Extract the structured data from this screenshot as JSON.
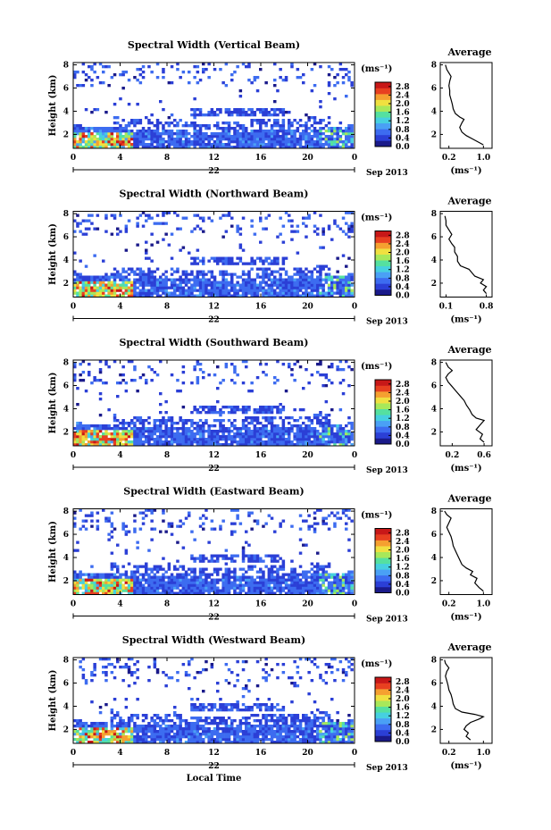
{
  "chart_data": {
    "type": "heatmap",
    "x_label": "Local Time",
    "y_label": "Height (km)",
    "x_ticks": [
      "0",
      "4",
      "8",
      "12",
      "16",
      "20",
      "0"
    ],
    "y_ticks": [
      "2",
      "4",
      "6",
      "8"
    ],
    "date_day": "22",
    "date_month_year": "Sep 2013",
    "colorbar_unit": "(ms⁻¹)",
    "colorbar_ticks": [
      "0.0",
      "0.4",
      "0.8",
      "1.2",
      "1.6",
      "2.0",
      "2.4",
      "2.8"
    ],
    "colorbar_range": [
      0.0,
      3.0
    ],
    "colors": [
      "#1a1a8a",
      "#2b3fd6",
      "#3d6cf0",
      "#4aa0f5",
      "#46d0e0",
      "#55e0a0",
      "#a8e85a",
      "#f0e040",
      "#f5a030",
      "#e84020",
      "#c81818"
    ],
    "panels": [
      {
        "title": "Spectral Width (Vertical Beam)",
        "avg_title": "Average",
        "avg_unit": "(ms⁻¹)",
        "avg_xticks": [
          "0.2",
          "1.0"
        ],
        "avg_xrange": [
          0.0,
          1.2
        ],
        "avg_profile": [
          [
            1.0,
            1.1
          ],
          [
            0.9,
            1.3
          ],
          [
            0.75,
            1.6
          ],
          [
            0.6,
            1.9
          ],
          [
            0.5,
            2.2
          ],
          [
            0.45,
            2.6
          ],
          [
            0.5,
            3.0
          ],
          [
            0.55,
            3.3
          ],
          [
            0.45,
            3.5
          ],
          [
            0.35,
            3.8
          ],
          [
            0.3,
            4.2
          ],
          [
            0.28,
            4.6
          ],
          [
            0.25,
            5.0
          ],
          [
            0.22,
            5.4
          ],
          [
            0.22,
            5.8
          ],
          [
            0.2,
            6.2
          ],
          [
            0.22,
            6.6
          ],
          [
            0.25,
            7.0
          ],
          [
            0.2,
            7.3
          ],
          [
            0.15,
            7.6
          ],
          [
            0.12,
            8.0
          ]
        ]
      },
      {
        "title": "Spectral Width (Northward Beam)",
        "avg_title": "Average",
        "avg_unit": "(ms⁻¹)",
        "avg_xticks": [
          "0.1",
          "0.8"
        ],
        "avg_xrange": [
          0.0,
          0.9
        ],
        "avg_profile": [
          [
            0.8,
            1.1
          ],
          [
            0.75,
            1.4
          ],
          [
            0.8,
            1.7
          ],
          [
            0.7,
            2.0
          ],
          [
            0.75,
            2.3
          ],
          [
            0.6,
            2.6
          ],
          [
            0.55,
            2.9
          ],
          [
            0.5,
            3.2
          ],
          [
            0.35,
            3.5
          ],
          [
            0.3,
            3.9
          ],
          [
            0.3,
            4.3
          ],
          [
            0.25,
            4.7
          ],
          [
            0.25,
            5.1
          ],
          [
            0.2,
            5.4
          ],
          [
            0.15,
            5.8
          ],
          [
            0.2,
            6.2
          ],
          [
            0.15,
            6.6
          ],
          [
            0.1,
            7.0
          ],
          [
            0.1,
            7.4
          ],
          [
            0.08,
            7.8
          ]
        ]
      },
      {
        "title": "Spectral Width (Southward Beam)",
        "avg_title": "Average",
        "avg_unit": "(ms⁻¹)",
        "avg_xticks": [
          "0.2",
          "0.6"
        ],
        "avg_xrange": [
          0.05,
          0.7
        ],
        "avg_profile": [
          [
            0.6,
            1.1
          ],
          [
            0.55,
            1.4
          ],
          [
            0.58,
            1.8
          ],
          [
            0.5,
            2.2
          ],
          [
            0.55,
            2.6
          ],
          [
            0.6,
            3.0
          ],
          [
            0.5,
            3.2
          ],
          [
            0.45,
            3.5
          ],
          [
            0.42,
            3.9
          ],
          [
            0.38,
            4.3
          ],
          [
            0.35,
            4.7
          ],
          [
            0.3,
            5.1
          ],
          [
            0.25,
            5.5
          ],
          [
            0.2,
            5.9
          ],
          [
            0.15,
            6.3
          ],
          [
            0.12,
            6.7
          ],
          [
            0.15,
            7.0
          ],
          [
            0.2,
            7.3
          ],
          [
            0.15,
            7.6
          ],
          [
            0.12,
            8.0
          ]
        ]
      },
      {
        "title": "Spectral Width (Eastward Beam)",
        "avg_title": "Average",
        "avg_unit": "(ms⁻¹)",
        "avg_xticks": [
          "0.2",
          "1.0"
        ],
        "avg_xrange": [
          0.0,
          1.2
        ],
        "avg_profile": [
          [
            1.0,
            1.1
          ],
          [
            0.9,
            1.4
          ],
          [
            0.8,
            1.8
          ],
          [
            0.85,
            2.2
          ],
          [
            0.7,
            2.5
          ],
          [
            0.75,
            2.8
          ],
          [
            0.6,
            3.1
          ],
          [
            0.5,
            3.4
          ],
          [
            0.45,
            3.8
          ],
          [
            0.4,
            4.2
          ],
          [
            0.35,
            4.6
          ],
          [
            0.3,
            5.0
          ],
          [
            0.28,
            5.4
          ],
          [
            0.25,
            5.8
          ],
          [
            0.2,
            6.2
          ],
          [
            0.15,
            6.6
          ],
          [
            0.2,
            7.0
          ],
          [
            0.25,
            7.4
          ],
          [
            0.15,
            7.7
          ],
          [
            0.1,
            8.0
          ]
        ]
      },
      {
        "title": "Spectral Width (Westward Beam)",
        "avg_title": "Average",
        "avg_unit": "(ms⁻¹)",
        "avg_xticks": [
          "0.2",
          "1.0"
        ],
        "avg_xrange": [
          0.0,
          1.2
        ],
        "avg_profile": [
          [
            0.7,
            1.1
          ],
          [
            0.6,
            1.4
          ],
          [
            0.65,
            1.7
          ],
          [
            0.55,
            2.0
          ],
          [
            0.6,
            2.3
          ],
          [
            0.7,
            2.6
          ],
          [
            0.9,
            2.9
          ],
          [
            1.0,
            3.1
          ],
          [
            0.8,
            3.3
          ],
          [
            0.5,
            3.5
          ],
          [
            0.35,
            3.8
          ],
          [
            0.3,
            4.2
          ],
          [
            0.28,
            4.6
          ],
          [
            0.25,
            5.0
          ],
          [
            0.2,
            5.4
          ],
          [
            0.18,
            5.8
          ],
          [
            0.15,
            6.2
          ],
          [
            0.12,
            6.6
          ],
          [
            0.15,
            7.0
          ],
          [
            0.2,
            7.3
          ],
          [
            0.12,
            7.7
          ],
          [
            0.1,
            8.0
          ]
        ]
      }
    ]
  }
}
